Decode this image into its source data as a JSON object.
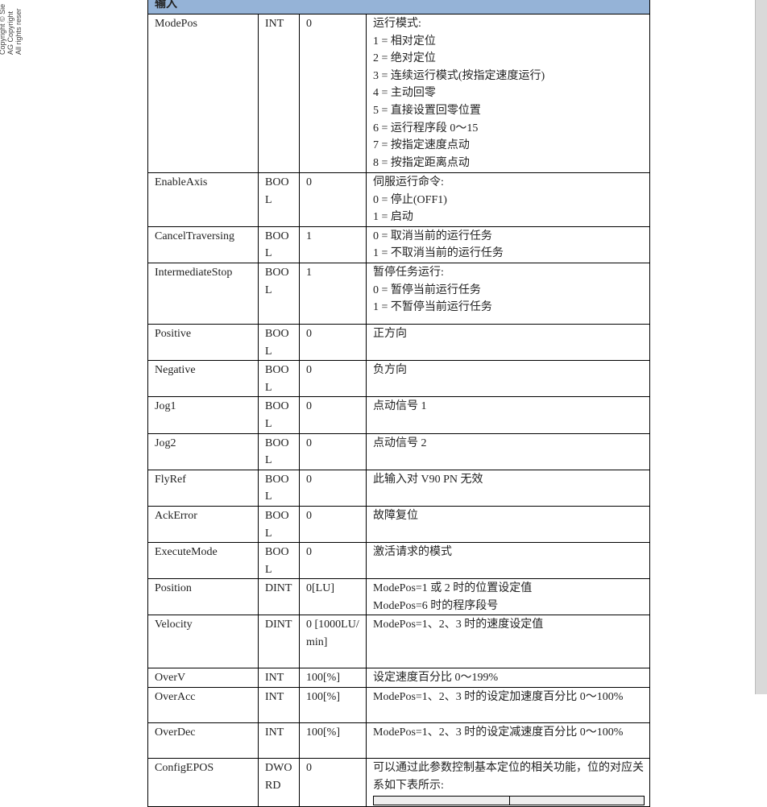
{
  "margin_text": [
    "Copyright © Sie",
    "AG Copyright",
    "All rights reser"
  ],
  "header": "输入",
  "rows": [
    {
      "name": "ModePos",
      "type": "INT",
      "default": "0",
      "desc": [
        "运行模式:",
        "1 = 相对定位",
        "2 = 绝对定位",
        "3 = 连续运行模式(按指定速度运行)",
        "4 = 主动回零",
        "5 = 直接设置回零位置",
        "6 = 运行程序段 0～15",
        "7 = 按指定速度点动",
        "8 = 按指定距离点动"
      ]
    },
    {
      "name": "EnableAxis",
      "type": "BOOL",
      "default": "0",
      "desc": [
        "伺服运行命令:",
        "0 = 停止(OFF1)",
        "1 = 启动"
      ]
    },
    {
      "name": "CancelTraversing",
      "type": "BOOL",
      "default": "1",
      "desc": [
        "0 = 取消当前的运行任务",
        "1 = 不取消当前的运行任务"
      ]
    },
    {
      "name": "IntermediateStop",
      "type": "BOOL",
      "default": "1",
      "desc": [
        "暂停任务运行:",
        "0 = 暂停当前运行任务",
        "1 = 不暂停当前运行任务"
      ]
    },
    {
      "name": "Positive",
      "type": "BOOL",
      "default": "0",
      "desc": [
        "正方向"
      ]
    },
    {
      "name": "Negative",
      "type": "BOOL",
      "default": "0",
      "desc": [
        "负方向"
      ]
    },
    {
      "name": "Jog1",
      "type": "BOOL",
      "default": "0",
      "desc": [
        "点动信号 1"
      ]
    },
    {
      "name": "Jog2",
      "type": "BOOL",
      "default": "0",
      "desc": [
        "点动信号 2"
      ]
    },
    {
      "name": "FlyRef",
      "type": "BOOL",
      "default": "0",
      "desc": [
        "此输入对 V90 PN 无效"
      ]
    },
    {
      "name": "AckError",
      "type": "BOOL",
      "default": "0",
      "desc": [
        "故障复位"
      ]
    },
    {
      "name": "ExecuteMode",
      "type": "BOOL",
      "default": "0",
      "desc": [
        "激活请求的模式"
      ]
    },
    {
      "name": "Position",
      "type": "DINT",
      "default": "0[LU]",
      "desc": [
        "ModePos=1 或 2 时的位置设定值",
        "ModePos=6 时的程序段号"
      ]
    },
    {
      "name": "Velocity",
      "type": "DINT",
      "default": "0 [1000LU/min]",
      "desc": [
        "ModePos=1、2、3 时的速度设定值"
      ]
    },
    {
      "name": "OverV",
      "type": "INT",
      "default": "100[%]",
      "desc": [
        "设定速度百分比 0～199%"
      ]
    },
    {
      "name": "OverAcc",
      "type": "INT",
      "default": "100[%]",
      "desc": [
        "ModePos=1、2、3 时的设定加速度百分比 0～100%"
      ]
    },
    {
      "name": "OverDec",
      "type": "INT",
      "default": "100[%]",
      "desc": [
        "ModePos=1、2、3 时的设定减速度百分比 0～100%"
      ]
    },
    {
      "name": "ConfigEPOS",
      "type": "DWORD",
      "default": "0",
      "desc": [
        "可以通过此参数控制基本定位的相关功能，位的对应关系如下表所示:"
      ]
    }
  ]
}
